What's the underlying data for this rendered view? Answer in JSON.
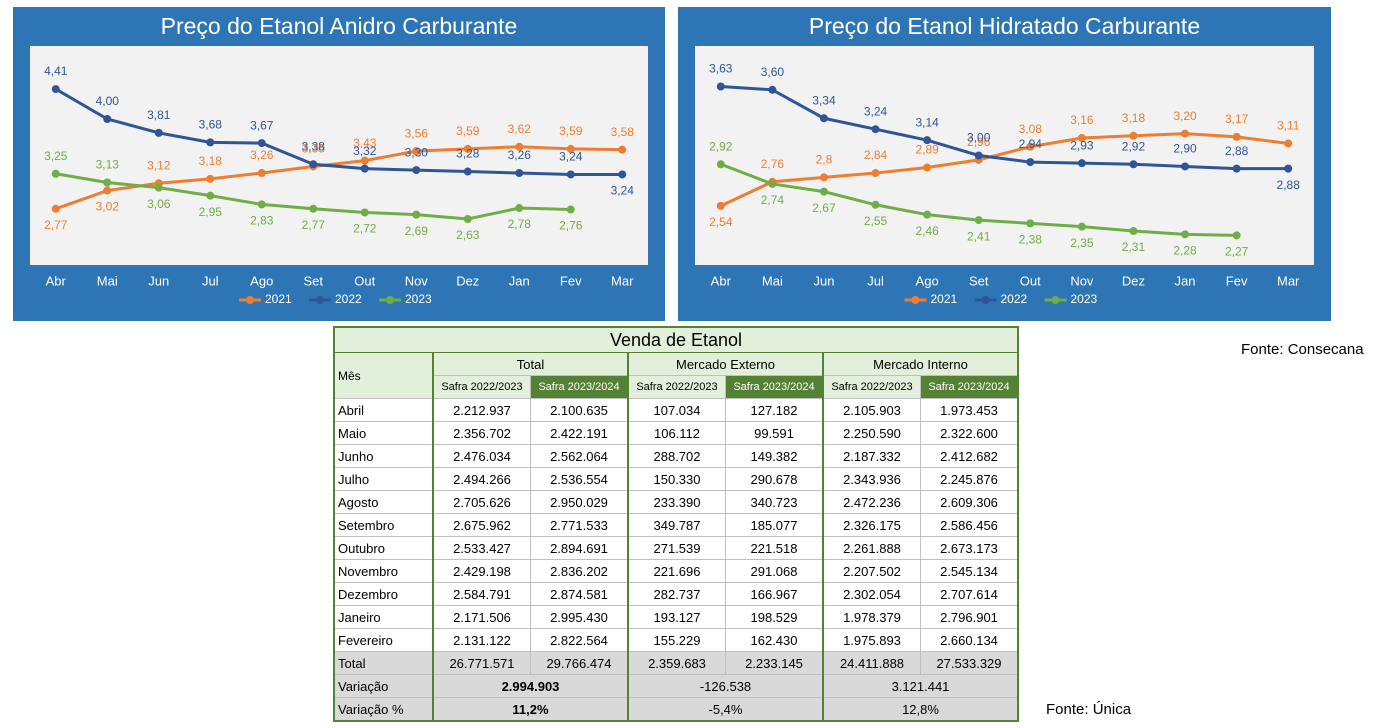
{
  "chart_data": [
    {
      "type": "line",
      "title": "Preço do Etanol Anidro Carburante",
      "categories": [
        "Abr",
        "Mai",
        "Jun",
        "Jul",
        "Ago",
        "Set",
        "Out",
        "Nov",
        "Dez",
        "Jan",
        "Fev",
        "Mar"
      ],
      "ylim": [
        2,
        5
      ],
      "series": [
        {
          "name": "2021",
          "color": "#ed7d31",
          "values": [
            2.77,
            3.02,
            3.12,
            3.18,
            3.26,
            3.35,
            3.43,
            3.56,
            3.59,
            3.62,
            3.59,
            3.58
          ],
          "value_labels": [
            "2,77",
            "3,02",
            "3,12",
            "3,18",
            "3,26",
            "3,35",
            "3,43",
            "3,56",
            "3,59",
            "3,62",
            "3,59",
            "3,58"
          ]
        },
        {
          "name": "2022",
          "color": "#2f5597",
          "values": [
            4.41,
            4.0,
            3.81,
            3.68,
            3.67,
            3.38,
            3.32,
            3.3,
            3.28,
            3.26,
            3.24,
            3.24
          ],
          "value_labels": [
            "4,41",
            "4,00",
            "3,81",
            "3,68",
            "3,67",
            "3,38",
            "3,32",
            "3,30",
            "3,28",
            "3,26",
            "3,24",
            "3,24"
          ]
        },
        {
          "name": "2023",
          "color": "#70ad47",
          "values": [
            3.25,
            3.13,
            3.06,
            2.95,
            2.83,
            2.77,
            2.72,
            2.69,
            2.63,
            2.78,
            2.76,
            null
          ],
          "value_labels": [
            "3,25",
            "3,13",
            "3,06",
            "2,95",
            "2,83",
            "2,77",
            "2,72",
            "2,69",
            "2,63",
            "2,78",
            "2,76",
            null
          ]
        }
      ],
      "legend": "bottom"
    },
    {
      "type": "line",
      "title": "Preço do Etanol Hidratado Carburante",
      "categories": [
        "Abr",
        "Mai",
        "Jun",
        "Jul",
        "Ago",
        "Set",
        "Out",
        "Nov",
        "Dez",
        "Jan",
        "Fev",
        "Mar"
      ],
      "ylim": [
        2,
        4
      ],
      "series": [
        {
          "name": "2021",
          "color": "#ed7d31",
          "values": [
            2.54,
            2.76,
            2.8,
            2.84,
            2.89,
            2.96,
            3.08,
            3.16,
            3.18,
            3.2,
            3.17,
            3.11
          ],
          "value_labels": [
            "2,54",
            "2,76",
            "2,8",
            "2,84",
            "2,89",
            "2,96",
            "3,08",
            "3,16",
            "3,18",
            "3,20",
            "3,17",
            "3,11"
          ]
        },
        {
          "name": "2022",
          "color": "#2f5597",
          "values": [
            3.63,
            3.6,
            3.34,
            3.24,
            3.14,
            3.0,
            2.94,
            2.93,
            2.92,
            2.9,
            2.88,
            2.88
          ],
          "value_labels": [
            "3,63",
            "3,60",
            "3,34",
            "3,24",
            "3,14",
            "3,00",
            "2,94",
            "2,93",
            "2,92",
            "2,90",
            "2,88",
            "2,88"
          ]
        },
        {
          "name": "2023",
          "color": "#70ad47",
          "values": [
            2.92,
            2.74,
            2.67,
            2.55,
            2.46,
            2.41,
            2.38,
            2.35,
            2.31,
            2.28,
            2.27,
            null
          ],
          "value_labels": [
            "2,92",
            "2,74",
            "2,67",
            "2,55",
            "2,46",
            "2,41",
            "2,38",
            "2,35",
            "2,31",
            "2,28",
            "2,27",
            null
          ]
        }
      ],
      "legend": "bottom"
    }
  ],
  "table": {
    "title": "Venda de Etanol",
    "first_header": "Mês",
    "groups": [
      "Total",
      "Mercado Externo",
      "Mercado Interno"
    ],
    "subheaders": [
      "Safra 2022/2023",
      "Safra 2023/2024",
      "Safra 2022/2023",
      "Safra 2023/2024",
      "Safra 2022/2023",
      "Safra 2023/2024"
    ],
    "rows": [
      [
        "Abril",
        "2.212.937",
        "2.100.635",
        "107.034",
        "127.182",
        "2.105.903",
        "1.973.453"
      ],
      [
        "Maio",
        "2.356.702",
        "2.422.191",
        "106.112",
        "99.591",
        "2.250.590",
        "2.322.600"
      ],
      [
        "Junho",
        "2.476.034",
        "2.562.064",
        "288.702",
        "149.382",
        "2.187.332",
        "2.412.682"
      ],
      [
        "Julho",
        "2.494.266",
        "2.536.554",
        "150.330",
        "290.678",
        "2.343.936",
        "2.245.876"
      ],
      [
        "Agosto",
        "2.705.626",
        "2.950.029",
        "233.390",
        "340.723",
        "2.472.236",
        "2.609.306"
      ],
      [
        "Setembro",
        "2.675.962",
        "2.771.533",
        "349.787",
        "185.077",
        "2.326.175",
        "2.586.456"
      ],
      [
        "Outubro",
        "2.533.427",
        "2.894.691",
        "271.539",
        "221.518",
        "2.261.888",
        "2.673.173"
      ],
      [
        "Novembro",
        "2.429.198",
        "2.836.202",
        "221.696",
        "291.068",
        "2.207.502",
        "2.545.134"
      ],
      [
        "Dezembro",
        "2.584.791",
        "2.874.581",
        "282.737",
        "166.967",
        "2.302.054",
        "2.707.614"
      ],
      [
        "Janeiro",
        "2.171.506",
        "2.995.430",
        "193.127",
        "198.529",
        "1.978.379",
        "2.796.901"
      ],
      [
        "Fevereiro",
        "2.131.122",
        "2.822.564",
        "155.229",
        "162.430",
        "1.975.893",
        "2.660.134"
      ]
    ],
    "total": [
      "Total",
      "26.771.571",
      "29.766.474",
      "2.359.683",
      "2.233.145",
      "24.411.888",
      "27.533.329"
    ],
    "variation": [
      "Variação",
      "2.994.903",
      "-126.538",
      "3.121.441"
    ],
    "variation_pct": [
      "Variação %",
      "11,2%",
      "-5,4%",
      "12,8%"
    ]
  },
  "sources": [
    "Fonte: Consecana",
    "Fonte: Única"
  ]
}
